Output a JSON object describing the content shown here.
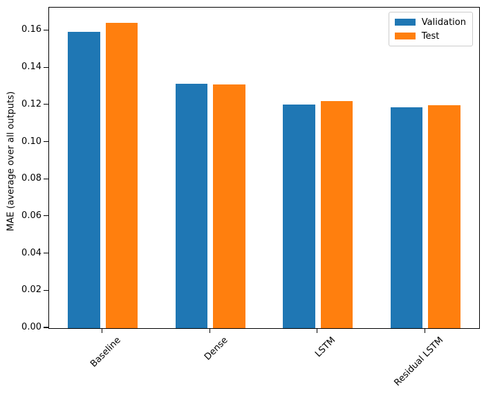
{
  "chart_data": {
    "type": "bar",
    "categories": [
      "Baseline",
      "Dense",
      "LSTM",
      "Residual LSTM"
    ],
    "series": [
      {
        "name": "Validation",
        "color": "#1f77b4",
        "values": [
          0.1595,
          0.1315,
          0.1205,
          0.1187
        ]
      },
      {
        "name": "Test",
        "color": "#ff7f0e",
        "values": [
          0.1641,
          0.1313,
          0.1221,
          0.12
        ]
      }
    ],
    "title": "",
    "xlabel": "",
    "ylabel": "MAE (average over all outputs)",
    "ylim": [
      0,
      0.17244
    ],
    "yticks": [
      0.0,
      0.02,
      0.04,
      0.06,
      0.08,
      0.1,
      0.12,
      0.14,
      0.16
    ],
    "ytick_format": "2dp",
    "xtick_rotation": 45,
    "grid": false,
    "legend_position": "upper right",
    "bar_group_width_fraction": 0.3,
    "bar_center_offset_fraction": 0.175
  }
}
